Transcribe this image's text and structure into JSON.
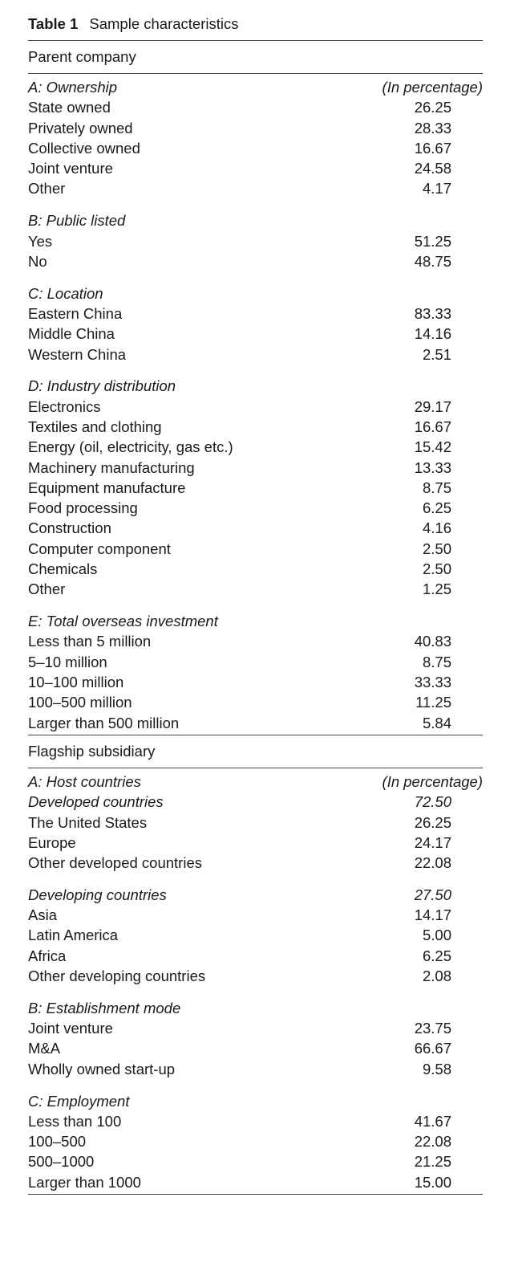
{
  "table": {
    "label": "Table 1",
    "title": "Sample characteristics",
    "parts": [
      {
        "title": "Parent company",
        "groups": [
          {
            "title": "A: Ownership",
            "unit": "(In percentage)",
            "rows": [
              {
                "label": "State owned",
                "value": "26.25"
              },
              {
                "label": "Privately owned",
                "value": "28.33"
              },
              {
                "label": "Collective owned",
                "value": "16.67"
              },
              {
                "label": "Joint venture",
                "value": "24.58"
              },
              {
                "label": "Other",
                "value": "4.17"
              }
            ]
          },
          {
            "title": "B: Public listed",
            "rows": [
              {
                "label": "Yes",
                "value": "51.25"
              },
              {
                "label": "No",
                "value": "48.75"
              }
            ]
          },
          {
            "title": "C: Location",
            "rows": [
              {
                "label": "Eastern China",
                "value": "83.33"
              },
              {
                "label": "Middle China",
                "value": "14.16"
              },
              {
                "label": "Western China",
                "value": "2.51"
              }
            ]
          },
          {
            "title": "D: Industry distribution",
            "rows": [
              {
                "label": "Electronics",
                "value": "29.17"
              },
              {
                "label": "Textiles and clothing",
                "value": "16.67"
              },
              {
                "label": "Energy (oil, electricity, gas etc.)",
                "value": "15.42"
              },
              {
                "label": "Machinery manufacturing",
                "value": "13.33"
              },
              {
                "label": "Equipment manufacture",
                "value": "8.75"
              },
              {
                "label": "Food processing",
                "value": "6.25"
              },
              {
                "label": "Construction",
                "value": "4.16"
              },
              {
                "label": "Computer component",
                "value": "2.50"
              },
              {
                "label": "Chemicals",
                "value": "2.50"
              },
              {
                "label": "Other",
                "value": "1.25"
              }
            ]
          },
          {
            "title": "E: Total overseas investment",
            "rows": [
              {
                "label": "Less than 5 million",
                "value": "40.83"
              },
              {
                "label": "5–10 million",
                "value": "8.75"
              },
              {
                "label": "10–100 million",
                "value": "33.33"
              },
              {
                "label": "100–500 million",
                "value": "11.25"
              },
              {
                "label": "Larger than 500 million",
                "value": "5.84"
              }
            ]
          }
        ]
      },
      {
        "title": "Flagship subsidiary",
        "groups": [
          {
            "title": "A: Host countries",
            "unit": "(In percentage)",
            "rows": [
              {
                "label": "Developed countries",
                "value": "72.50",
                "italic": true
              },
              {
                "label": "The United States",
                "value": "26.25"
              },
              {
                "label": "Europe",
                "value": "24.17"
              },
              {
                "label": "Other developed countries",
                "value": "22.08"
              }
            ]
          },
          {
            "rows": [
              {
                "label": "Developing countries",
                "value": "27.50",
                "italic": true
              },
              {
                "label": "Asia",
                "value": "14.17"
              },
              {
                "label": "Latin America",
                "value": "5.00"
              },
              {
                "label": "Africa",
                "value": "6.25"
              },
              {
                "label": "Other developing countries",
                "value": "2.08"
              }
            ]
          },
          {
            "title": "B: Establishment mode",
            "rows": [
              {
                "label": "Joint venture",
                "value": "23.75"
              },
              {
                "label": "M&A",
                "value": "66.67"
              },
              {
                "label": "Wholly owned start-up",
                "value": "9.58"
              }
            ]
          },
          {
            "title": "C: Employment",
            "rows": [
              {
                "label": "Less than 100",
                "value": "41.67"
              },
              {
                "label": "100–500",
                "value": "22.08"
              },
              {
                "label": "500–1000",
                "value": "21.25"
              },
              {
                "label": "Larger than 1000",
                "value": "15.00"
              }
            ]
          }
        ]
      }
    ]
  }
}
